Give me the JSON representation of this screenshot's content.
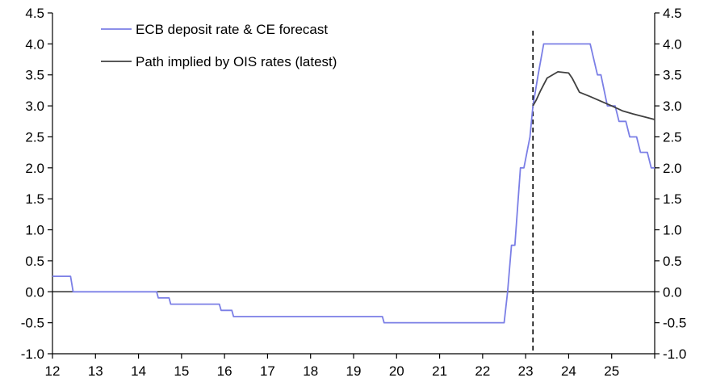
{
  "chart_data": {
    "type": "line",
    "title": "",
    "xlabel": "",
    "ylabel": "",
    "xlim": [
      12,
      26
    ],
    "ylim": [
      -1.0,
      4.5
    ],
    "x_ticks": [
      "12",
      "13",
      "14",
      "15",
      "16",
      "17",
      "18",
      "19",
      "20",
      "21",
      "22",
      "23",
      "24",
      "25"
    ],
    "y_ticks_left": [
      "4.5",
      "4.0",
      "3.5",
      "3.0",
      "2.5",
      "2.0",
      "1.5",
      "1.0",
      "0.5",
      "0.0",
      "-0.5",
      "-1.0"
    ],
    "y_ticks_right": [
      "4.5",
      "4.0",
      "3.5",
      "3.0",
      "2.5",
      "2.0",
      "1.5",
      "1.0",
      "0.5",
      "0.0",
      "-0.5",
      "-1.0"
    ],
    "grid": false,
    "legend_position": "top-left",
    "forecast_marker_x": 23.17,
    "series": [
      {
        "name": "ECB deposit rate & CE forecast",
        "color": "#7b7fe6",
        "points": [
          [
            12.0,
            0.25
          ],
          [
            12.42,
            0.25
          ],
          [
            12.48,
            0.0
          ],
          [
            14.42,
            0.0
          ],
          [
            14.46,
            -0.1
          ],
          [
            14.71,
            -0.1
          ],
          [
            14.75,
            -0.2
          ],
          [
            15.88,
            -0.2
          ],
          [
            15.92,
            -0.3
          ],
          [
            16.17,
            -0.3
          ],
          [
            16.21,
            -0.4
          ],
          [
            19.67,
            -0.4
          ],
          [
            19.71,
            -0.5
          ],
          [
            22.5,
            -0.5
          ],
          [
            22.58,
            0.0
          ],
          [
            22.67,
            0.75
          ],
          [
            22.75,
            0.75
          ],
          [
            22.88,
            2.0
          ],
          [
            22.96,
            2.0
          ],
          [
            23.1,
            2.5
          ],
          [
            23.17,
            3.0
          ],
          [
            23.29,
            3.5
          ],
          [
            23.42,
            4.0
          ],
          [
            24.5,
            4.0
          ],
          [
            24.67,
            3.5
          ],
          [
            24.75,
            3.5
          ],
          [
            24.9,
            3.0
          ],
          [
            25.08,
            3.0
          ],
          [
            25.17,
            2.75
          ],
          [
            25.33,
            2.75
          ],
          [
            25.42,
            2.5
          ],
          [
            25.58,
            2.5
          ],
          [
            25.67,
            2.25
          ],
          [
            25.83,
            2.25
          ],
          [
            25.92,
            2.0
          ],
          [
            26.0,
            2.0
          ]
        ]
      },
      {
        "name": "Path implied by OIS rates (latest)",
        "color": "#404040",
        "points": [
          [
            23.17,
            3.0
          ],
          [
            23.25,
            3.1
          ],
          [
            23.35,
            3.25
          ],
          [
            23.5,
            3.45
          ],
          [
            23.75,
            3.55
          ],
          [
            24.0,
            3.53
          ],
          [
            24.08,
            3.45
          ],
          [
            24.25,
            3.22
          ],
          [
            24.5,
            3.15
          ],
          [
            25.0,
            3.0
          ],
          [
            25.25,
            2.92
          ],
          [
            25.5,
            2.87
          ],
          [
            26.0,
            2.78
          ]
        ]
      }
    ]
  }
}
